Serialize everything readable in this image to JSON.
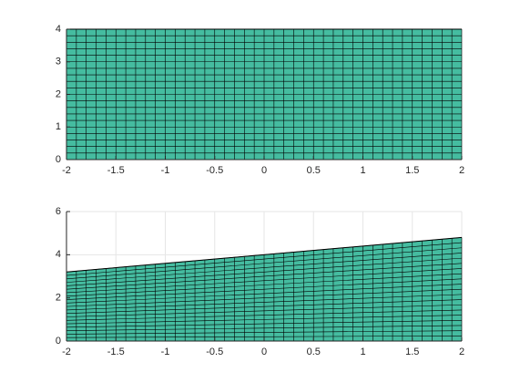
{
  "chart_data": [
    {
      "type": "mesh",
      "x": [
        -2,
        2
      ],
      "values": [
        4,
        4
      ],
      "color": "#45bca0",
      "xlim": [
        -2,
        2
      ],
      "ylim": [
        0,
        4
      ],
      "xticks": [
        -2,
        -1.5,
        -1,
        -0.5,
        0,
        0.5,
        1,
        1.5,
        2
      ],
      "yticks": [
        0,
        1,
        2,
        3,
        4
      ],
      "grid": false
    },
    {
      "type": "mesh",
      "x": [
        -2,
        2
      ],
      "values": [
        3.2,
        4.8
      ],
      "color": "#45bca0",
      "xlim": [
        -2,
        2
      ],
      "ylim": [
        0,
        6
      ],
      "xticks": [
        -2,
        -1.5,
        -1,
        -0.5,
        0,
        0.5,
        1,
        1.5,
        2
      ],
      "yticks": [
        0,
        2,
        4,
        6
      ],
      "grid": true
    }
  ]
}
